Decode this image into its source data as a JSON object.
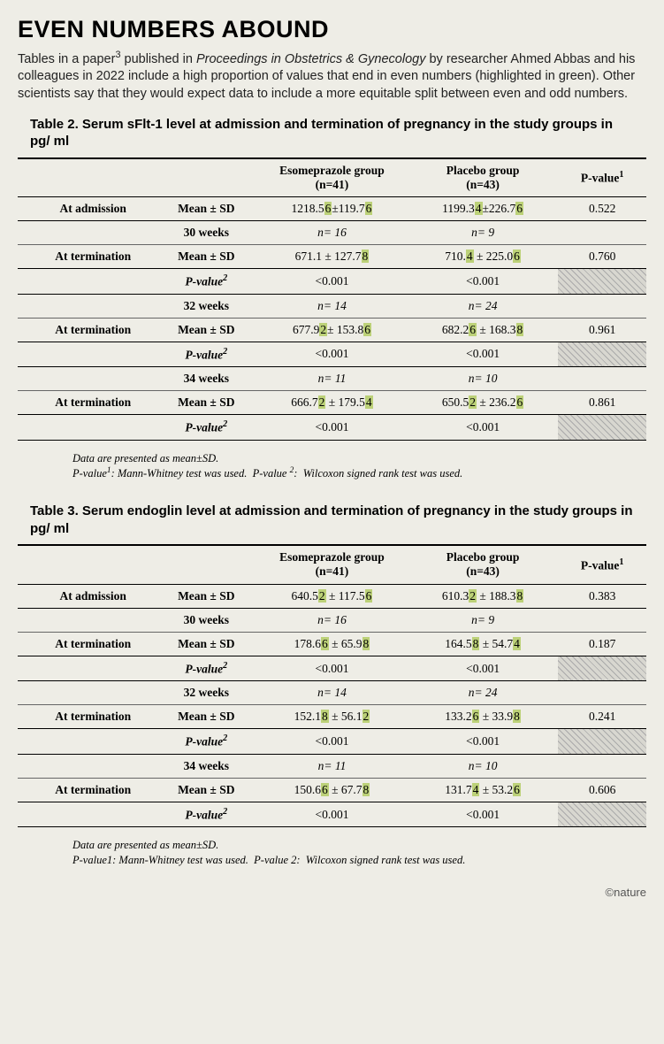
{
  "headline": "EVEN NUMBERS ABOUND",
  "intro_html": "Tables in a paper<sup>3</sup> published in <i>Proceedings in Obstetrics & Gynecology</i> by researcher Ahmed Abbas and his colleagues in 2022 include a high proportion of values that end in even numbers (highlighted in green). Other scientists say that they would expect data to include a more equitable split between even and odd numbers.",
  "credit": "©nature",
  "highlight_color": "#bcd178",
  "background_color": "#eeede6",
  "tables": [
    {
      "title": "Table 2. Serum sFlt-1 level at admission and termination of pregnancy in the study groups in pg/ ml",
      "col_eso_html": "Esomeprazole group<br>(n=41)",
      "col_plac_html": "Placebo group<br>(n=43)",
      "col_p_html": "P-value<sup>1</sup>",
      "rows": [
        {
          "label": "At admission",
          "stat": "Mean ± SD",
          "eso": "1218.5<span class='hl'>6</span>±119.7<span class='hl'>6</span>",
          "plac": "1199.3<span class='hl'>4</span>±226.7<span class='hl'>6</span>",
          "p": "0.522"
        },
        {
          "label": "30 weeks",
          "stat": "",
          "eso": "<i>n= 16</i>",
          "plac": "<i>n= 9</i>",
          "p": ""
        },
        {
          "label": "At termination",
          "stat": "Mean ± SD",
          "eso": "671.1 ± 127.7<span class='hl'>8</span>",
          "plac": "710.<span class='hl'>4</span> ± 225.0<span class='hl'>6</span>",
          "p": "0.760"
        },
        {
          "label": "P-value<sup>2</sup>",
          "pvrow": true,
          "eso": "&lt;0.001",
          "plac": "&lt;0.001"
        },
        {
          "label": "32 weeks",
          "stat": "",
          "eso": "<i>n= 14</i>",
          "plac": "<i>n= 24</i>",
          "p": ""
        },
        {
          "label": "At termination",
          "stat": "Mean ± SD",
          "eso": "677.9<span class='hl'>2</span>± 153.8<span class='hl'>6</span>",
          "plac": "682.2<span class='hl'>6</span> ± 168.3<span class='hl'>8</span>",
          "p": "0.961"
        },
        {
          "label": "P-value<sup>2</sup>",
          "pvrow": true,
          "eso": "&lt;0.001",
          "plac": "&lt;0.001"
        },
        {
          "label": "34 weeks",
          "stat": "",
          "eso": "<i>n= 11</i>",
          "plac": "<i>n= 10</i>",
          "p": ""
        },
        {
          "label": "At termination",
          "stat": "Mean ± SD",
          "eso": "666.7<span class='hl'>2</span> ± 179.5<span class='hl'>4</span>",
          "plac": "650.5<span class='hl'>2</span> ± 236.2<span class='hl'>6</span>",
          "p": "0.861"
        },
        {
          "label": "P-value<sup>2</sup>",
          "pvrow": true,
          "eso": "&lt;0.001",
          "plac": "&lt;0.001"
        }
      ],
      "footnote_html": "Data are presented as mean±SD.<br>P-value<sup>1</sup>: Mann-Whitney test was used.&nbsp;&nbsp;P-value <sup>2</sup>:&nbsp;&nbsp;Wilcoxon signed rank test was used."
    },
    {
      "title": "Table 3. Serum endoglin level at admission and termination of pregnancy in the study groups in pg/ ml",
      "col_eso_html": "Esomeprazole group<br>(n=41)",
      "col_plac_html": "Placebo group<br>(n=43)",
      "col_p_html": "P-value<sup>1</sup>",
      "rows": [
        {
          "label": "At admission",
          "stat": "Mean ± SD",
          "eso": "640.5<span class='hl'>2</span> ± 117.5<span class='hl'>6</span>",
          "plac": "610.3<span class='hl'>2</span> ± 188.3<span class='hl'>8</span>",
          "p": "0.383"
        },
        {
          "label": "30 weeks",
          "stat": "",
          "eso": "<i>n= 16</i>",
          "plac": "<i>n= 9</i>",
          "p": ""
        },
        {
          "label": "At termination",
          "stat": "Mean ± SD",
          "eso": "178.6<span class='hl'>6</span> ± 65.9<span class='hl'>8</span>",
          "plac": "164.5<span class='hl'>8</span> ± 54.7<span class='hl'>4</span>",
          "p": "0.187"
        },
        {
          "label": "P-value<sup>2</sup>",
          "pvrow": true,
          "eso": "&lt;0.001",
          "plac": "&lt;0.001"
        },
        {
          "label": "32 weeks",
          "stat": "",
          "eso": "<i>n= 14</i>",
          "plac": "<i>n= 24</i>",
          "p": ""
        },
        {
          "label": "At termination",
          "stat": "Mean ± SD",
          "eso": "152.1<span class='hl'>8</span> ± 56.1<span class='hl'>2</span>",
          "plac": "133.2<span class='hl'>6</span> ± 33.9<span class='hl'>8</span>",
          "p": "0.241"
        },
        {
          "label": "P-value<sup>2</sup>",
          "pvrow": true,
          "eso": "&lt;0.001",
          "plac": "&lt;0.001"
        },
        {
          "label": "34 weeks",
          "stat": "",
          "eso": "<i>n= 11</i>",
          "plac": "<i>n= 10</i>",
          "p": ""
        },
        {
          "label": "At termination",
          "stat": "Mean ± SD",
          "eso": "150.6<span class='hl'>6</span> ± 67.7<span class='hl'>8</span>",
          "plac": "131.7<span class='hl'>4</span> ± 53.2<span class='hl'>6</span>",
          "p": "0.606"
        },
        {
          "label": "P-value<sup>2</sup>",
          "pvrow": true,
          "eso": "&lt;0.001",
          "plac": "&lt;0.001"
        }
      ],
      "footnote_html": "Data are presented as mean±SD.<br>P-value1: Mann-Whitney test was used.&nbsp;&nbsp;P-value 2:&nbsp;&nbsp;Wilcoxon signed rank test was used."
    }
  ]
}
